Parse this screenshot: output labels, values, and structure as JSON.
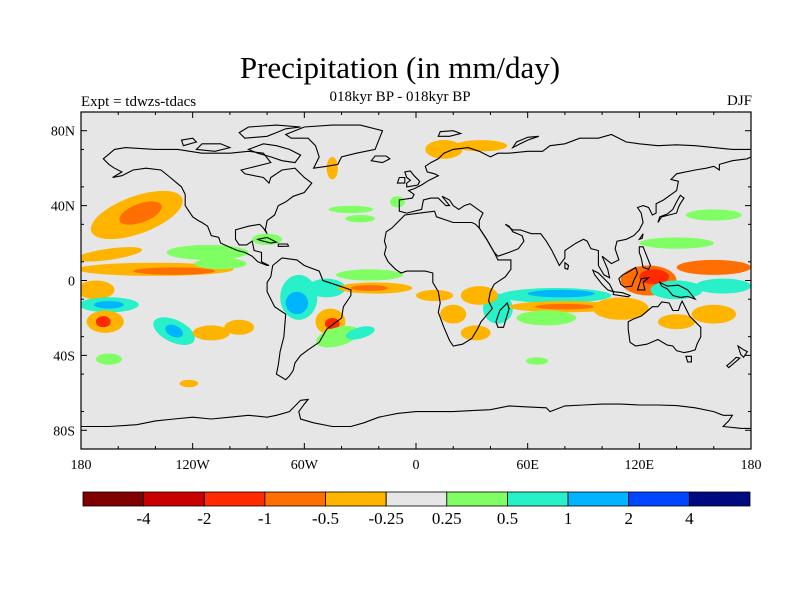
{
  "title": "Precipitation (in mm/day)",
  "subtitle": "018kyr BP - 018kyr BP",
  "expt_label": "Expt = tdwzs-tdacs",
  "season": "DJF",
  "colors": {
    "ocean": "#e6e6e6",
    "coast": "#000000",
    "palette": [
      "#800000",
      "#c80000",
      "#ff2a00",
      "#ff6e00",
      "#ffb400",
      "#e6e6e6",
      "#80ff64",
      "#28f0c8",
      "#00b4ff",
      "#0046ff",
      "#000a80"
    ]
  },
  "chart_data": {
    "type": "heatmap",
    "projection": "cylindrical-equidistant",
    "xlim": [
      -180,
      180
    ],
    "ylim": [
      -90,
      90
    ],
    "xticks": [
      {
        "value": -180,
        "label": "180"
      },
      {
        "value": -120,
        "label": "120W"
      },
      {
        "value": -60,
        "label": "60W"
      },
      {
        "value": 0,
        "label": "0"
      },
      {
        "value": 60,
        "label": "60E"
      },
      {
        "value": 120,
        "label": "120E"
      },
      {
        "value": 180,
        "label": "180"
      }
    ],
    "yticks": [
      {
        "value": 80,
        "label": "80N"
      },
      {
        "value": 40,
        "label": "40N"
      },
      {
        "value": 0,
        "label": "0"
      },
      {
        "value": -40,
        "label": "40S"
      },
      {
        "value": -80,
        "label": "80S"
      }
    ],
    "colorbar": {
      "levels": [
        -4,
        -2,
        -1,
        -0.5,
        -0.25,
        0.25,
        0.5,
        1,
        2,
        4
      ],
      "labels": [
        "-4",
        "-2",
        "-1",
        "-0.5",
        "-0.25",
        "0.25",
        "0.5",
        "1",
        "2",
        "4"
      ]
    },
    "anomaly_regions": [
      {
        "id": "n-pacific-dry",
        "lon": -150,
        "lat": 35,
        "rlon": 26,
        "rlat": 10,
        "rot": -20,
        "bin": 4
      },
      {
        "id": "n-pacific-dry-core",
        "lon": -148,
        "lat": 36,
        "rlon": 12,
        "rlat": 5,
        "rot": -20,
        "bin": 3
      },
      {
        "id": "e-pacific-wet-band",
        "lon": -112,
        "lat": 15,
        "rlon": 22,
        "rlat": 4,
        "rot": 0,
        "bin": 6
      },
      {
        "id": "w-pacific-dry-band",
        "lon": -165,
        "lat": 14,
        "rlon": 18,
        "rlat": 3,
        "rot": -8,
        "bin": 4
      },
      {
        "id": "itcz-pacific-dry",
        "lon": -140,
        "lat": 6,
        "rlon": 42,
        "rlat": 3.5,
        "rot": 0,
        "bin": 4
      },
      {
        "id": "itcz-pacific-dry-core",
        "lon": -130,
        "lat": 5,
        "rlon": 22,
        "rlat": 2,
        "rot": 0,
        "bin": 3
      },
      {
        "id": "itcz-e-pacific-wet",
        "lon": -105,
        "lat": 9,
        "rlon": 14,
        "rlat": 3,
        "rot": 0,
        "bin": 6
      },
      {
        "id": "spcz-dry",
        "lon": -172,
        "lat": -5,
        "rlon": 10,
        "rlat": 5,
        "rot": 0,
        "bin": 4
      },
      {
        "id": "eq-pacific-wet",
        "lon": -165,
        "lat": -13,
        "rlon": 16,
        "rlat": 4,
        "rot": 0,
        "bin": 7
      },
      {
        "id": "eq-pacific-wet-core",
        "lon": -165,
        "lat": -13,
        "rlon": 8,
        "rlat": 2,
        "rot": 0,
        "bin": 8
      },
      {
        "id": "s-pacific-dry",
        "lon": -167,
        "lat": -22,
        "rlon": 10,
        "rlat": 6,
        "rot": 0,
        "bin": 4
      },
      {
        "id": "s-pacific-dry-core",
        "lon": -168,
        "lat": -22,
        "rlon": 4,
        "rlat": 3,
        "rot": 0,
        "bin": 2
      },
      {
        "id": "se-pacific-wet",
        "lon": -130,
        "lat": -27,
        "rlon": 12,
        "rlat": 6,
        "rot": 25,
        "bin": 7
      },
      {
        "id": "se-pacific-wet-core",
        "lon": -130,
        "lat": -27,
        "rlon": 5,
        "rlat": 3,
        "rot": 25,
        "bin": 8
      },
      {
        "id": "s-pacific-dry-patch",
        "lon": -110,
        "lat": -28,
        "rlon": 10,
        "rlat": 4,
        "rot": 0,
        "bin": 4
      },
      {
        "id": "s-pacific-dry-east",
        "lon": -95,
        "lat": -25,
        "rlon": 8,
        "rlat": 4,
        "rot": 0,
        "bin": 4
      },
      {
        "id": "s-pacific-wet-sw",
        "lon": -165,
        "lat": -42,
        "rlon": 7,
        "rlat": 3,
        "rot": 0,
        "bin": 6
      },
      {
        "id": "s-ocean-dry",
        "lon": -122,
        "lat": -55,
        "rlon": 5,
        "rlat": 2,
        "rot": 0,
        "bin": 4
      },
      {
        "id": "amazon-wet",
        "lon": -63,
        "lat": -9,
        "rlon": 10,
        "rlat": 12,
        "rot": 0,
        "bin": 7
      },
      {
        "id": "amazon-wet-core",
        "lon": -64,
        "lat": -12,
        "rlon": 6,
        "rlat": 6,
        "rot": 0,
        "bin": 8
      },
      {
        "id": "s-america-wet",
        "lon": -48,
        "lat": -4,
        "rlon": 10,
        "rlat": 5,
        "rot": 0,
        "bin": 7
      },
      {
        "id": "s-america-dry",
        "lon": -46,
        "lat": -22,
        "rlon": 8,
        "rlat": 7,
        "rot": 0,
        "bin": 4
      },
      {
        "id": "s-america-dry-core",
        "lon": -45,
        "lat": -23,
        "rlon": 4,
        "rlat": 3,
        "rot": 0,
        "bin": 2
      },
      {
        "id": "s-atlantic-wet",
        "lon": -42,
        "lat": -30,
        "rlon": 12,
        "rlat": 5,
        "rot": -15,
        "bin": 6
      },
      {
        "id": "s-atlantic-wet-2",
        "lon": -30,
        "lat": -28,
        "rlon": 8,
        "rlat": 3,
        "rot": -15,
        "bin": 7
      },
      {
        "id": "atl-itcz-dry",
        "lon": -22,
        "lat": -4,
        "rlon": 20,
        "rlat": 3,
        "rot": 0,
        "bin": 4
      },
      {
        "id": "atl-itcz-dry-core",
        "lon": -25,
        "lat": -4,
        "rlon": 10,
        "rlat": 1.6,
        "rot": 0,
        "bin": 3
      },
      {
        "id": "atl-itcz-wet",
        "lon": -25,
        "lat": 3,
        "rlon": 18,
        "rlat": 3,
        "rot": 0,
        "bin": 6
      },
      {
        "id": "atl-dry-south",
        "lon": 10,
        "lat": -8,
        "rlon": 10,
        "rlat": 3,
        "rot": 0,
        "bin": 4
      },
      {
        "id": "s-africa-dry",
        "lon": 20,
        "lat": -18,
        "rlon": 7,
        "rlat": 5,
        "rot": 0,
        "bin": 4
      },
      {
        "id": "s-africa-dry-2",
        "lon": 32,
        "lat": -28,
        "rlon": 8,
        "rlat": 4,
        "rot": 0,
        "bin": 4
      },
      {
        "id": "madagascar-wet",
        "lon": 44,
        "lat": -15,
        "rlon": 8,
        "rlat": 8,
        "rot": 0,
        "bin": 7
      },
      {
        "id": "madagascar-dry",
        "lon": 34,
        "lat": -8,
        "rlon": 10,
        "rlat": 5,
        "rot": 0,
        "bin": 4
      },
      {
        "id": "indian-ocean-wet",
        "lon": 75,
        "lat": -8,
        "rlon": 30,
        "rlat": 4,
        "rot": 0,
        "bin": 7
      },
      {
        "id": "indian-ocean-wet-core",
        "lon": 78,
        "lat": -7,
        "rlon": 18,
        "rlat": 2,
        "rot": 0,
        "bin": 8
      },
      {
        "id": "indian-ocean-dry",
        "lon": 80,
        "lat": -14,
        "rlon": 30,
        "rlat": 3,
        "rot": 0,
        "bin": 4
      },
      {
        "id": "indian-ocean-dry-core",
        "lon": 80,
        "lat": -14,
        "rlon": 16,
        "rlat": 1.5,
        "rot": 0,
        "bin": 3
      },
      {
        "id": "indian-ocean-wet-s",
        "lon": 70,
        "lat": -20,
        "rlon": 16,
        "rlat": 4,
        "rot": 0,
        "bin": 6
      },
      {
        "id": "maritime-dry",
        "lon": 125,
        "lat": 0,
        "rlon": 15,
        "rlat": 8,
        "rot": 0,
        "bin": 3
      },
      {
        "id": "maritime-dry-core",
        "lon": 128,
        "lat": 2,
        "rlon": 8,
        "rlat": 4,
        "rot": 0,
        "bin": 2
      },
      {
        "id": "maritime-wet",
        "lon": 140,
        "lat": -5,
        "rlon": 14,
        "rlat": 5,
        "rot": 0,
        "bin": 7
      },
      {
        "id": "w-pacific-dry",
        "lon": 160,
        "lat": 7,
        "rlon": 20,
        "rlat": 4,
        "rot": 0,
        "bin": 3
      },
      {
        "id": "w-pacific-wet",
        "lon": 165,
        "lat": -3,
        "rlon": 15,
        "rlat": 4,
        "rot": 0,
        "bin": 7
      },
      {
        "id": "nw-pacific-wet",
        "lon": 140,
        "lat": 20,
        "rlon": 20,
        "rlat": 3,
        "rot": 0,
        "bin": 6
      },
      {
        "id": "nw-pacific-wet-2",
        "lon": 160,
        "lat": 35,
        "rlon": 15,
        "rlat": 3,
        "rot": 0,
        "bin": 6
      },
      {
        "id": "australia-dry",
        "lon": 110,
        "lat": -15,
        "rlon": 15,
        "rlat": 6,
        "rot": 0,
        "bin": 4
      },
      {
        "id": "australia-dry-2",
        "lon": 140,
        "lat": -22,
        "rlon": 10,
        "rlat": 4,
        "rot": 0,
        "bin": 4
      },
      {
        "id": "australia-dry-3",
        "lon": 160,
        "lat": -18,
        "rlon": 12,
        "rlat": 5,
        "rot": 0,
        "bin": 4
      },
      {
        "id": "s-ocean-wet",
        "lon": 65,
        "lat": -43,
        "rlon": 6,
        "rlat": 2,
        "rot": 0,
        "bin": 6
      },
      {
        "id": "n-atlantic-wet",
        "lon": -35,
        "lat": 38,
        "rlon": 12,
        "rlat": 2,
        "rot": 0,
        "bin": 6
      },
      {
        "id": "n-atlantic-wet-2",
        "lon": -30,
        "lat": 33,
        "rlon": 8,
        "rlat": 2,
        "rot": 0,
        "bin": 6
      },
      {
        "id": "n-atlantic-dry",
        "lon": 15,
        "lat": 70,
        "rlon": 10,
        "rlat": 5,
        "rot": 0,
        "bin": 4
      },
      {
        "id": "n-atlantic-dry-2",
        "lon": 35,
        "lat": 72,
        "rlon": 14,
        "rlat": 3,
        "rot": 0,
        "bin": 4
      },
      {
        "id": "arctic-dry",
        "lon": -45,
        "lat": 60,
        "rlon": 3,
        "rlat": 6,
        "rot": 0,
        "bin": 4
      },
      {
        "id": "europe-wet",
        "lon": -10,
        "lat": 42,
        "rlon": 4,
        "rlat": 3,
        "rot": 0,
        "bin": 6
      },
      {
        "id": "central-america-wet",
        "lon": -80,
        "lat": 22,
        "rlon": 8,
        "rlat": 3,
        "rot": 0,
        "bin": 6
      }
    ]
  }
}
